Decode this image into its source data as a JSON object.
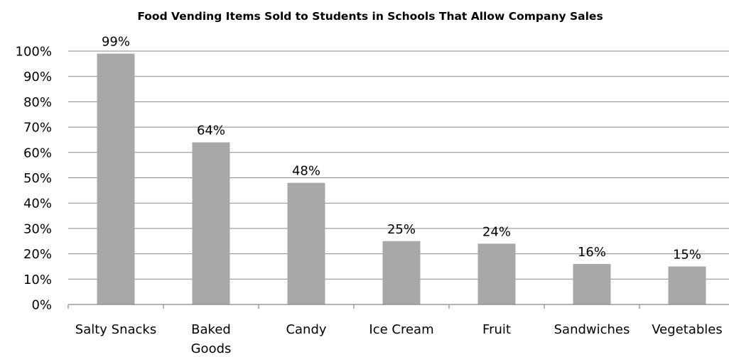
{
  "chart_data": {
    "type": "bar",
    "title": "Food Vending Items Sold to Students in Schools That Allow Company Sales",
    "xlabel": "",
    "ylabel": "",
    "categories": [
      [
        "Salty Snacks"
      ],
      [
        "Baked",
        "Goods"
      ],
      [
        "Candy"
      ],
      [
        "Ice Cream"
      ],
      [
        "Fruit"
      ],
      [
        "Sandwiches"
      ],
      [
        "Vegetables"
      ]
    ],
    "values": [
      99,
      64,
      48,
      25,
      24,
      16,
      15
    ],
    "value_labels": [
      "99%",
      "64%",
      "48%",
      "25%",
      "24%",
      "16%",
      "15%"
    ],
    "ylim": [
      0,
      100
    ],
    "yticks": [
      0,
      10,
      20,
      30,
      40,
      50,
      60,
      70,
      80,
      90,
      100
    ],
    "ytick_labels": [
      "0%",
      "10%",
      "20%",
      "30%",
      "40%",
      "50%",
      "60%",
      "70%",
      "80%",
      "90%",
      "100%"
    ],
    "grid": true,
    "legend": "none",
    "colors": {
      "bar": "#a8a8a8",
      "grid": "#888888",
      "text": "#000000"
    }
  }
}
